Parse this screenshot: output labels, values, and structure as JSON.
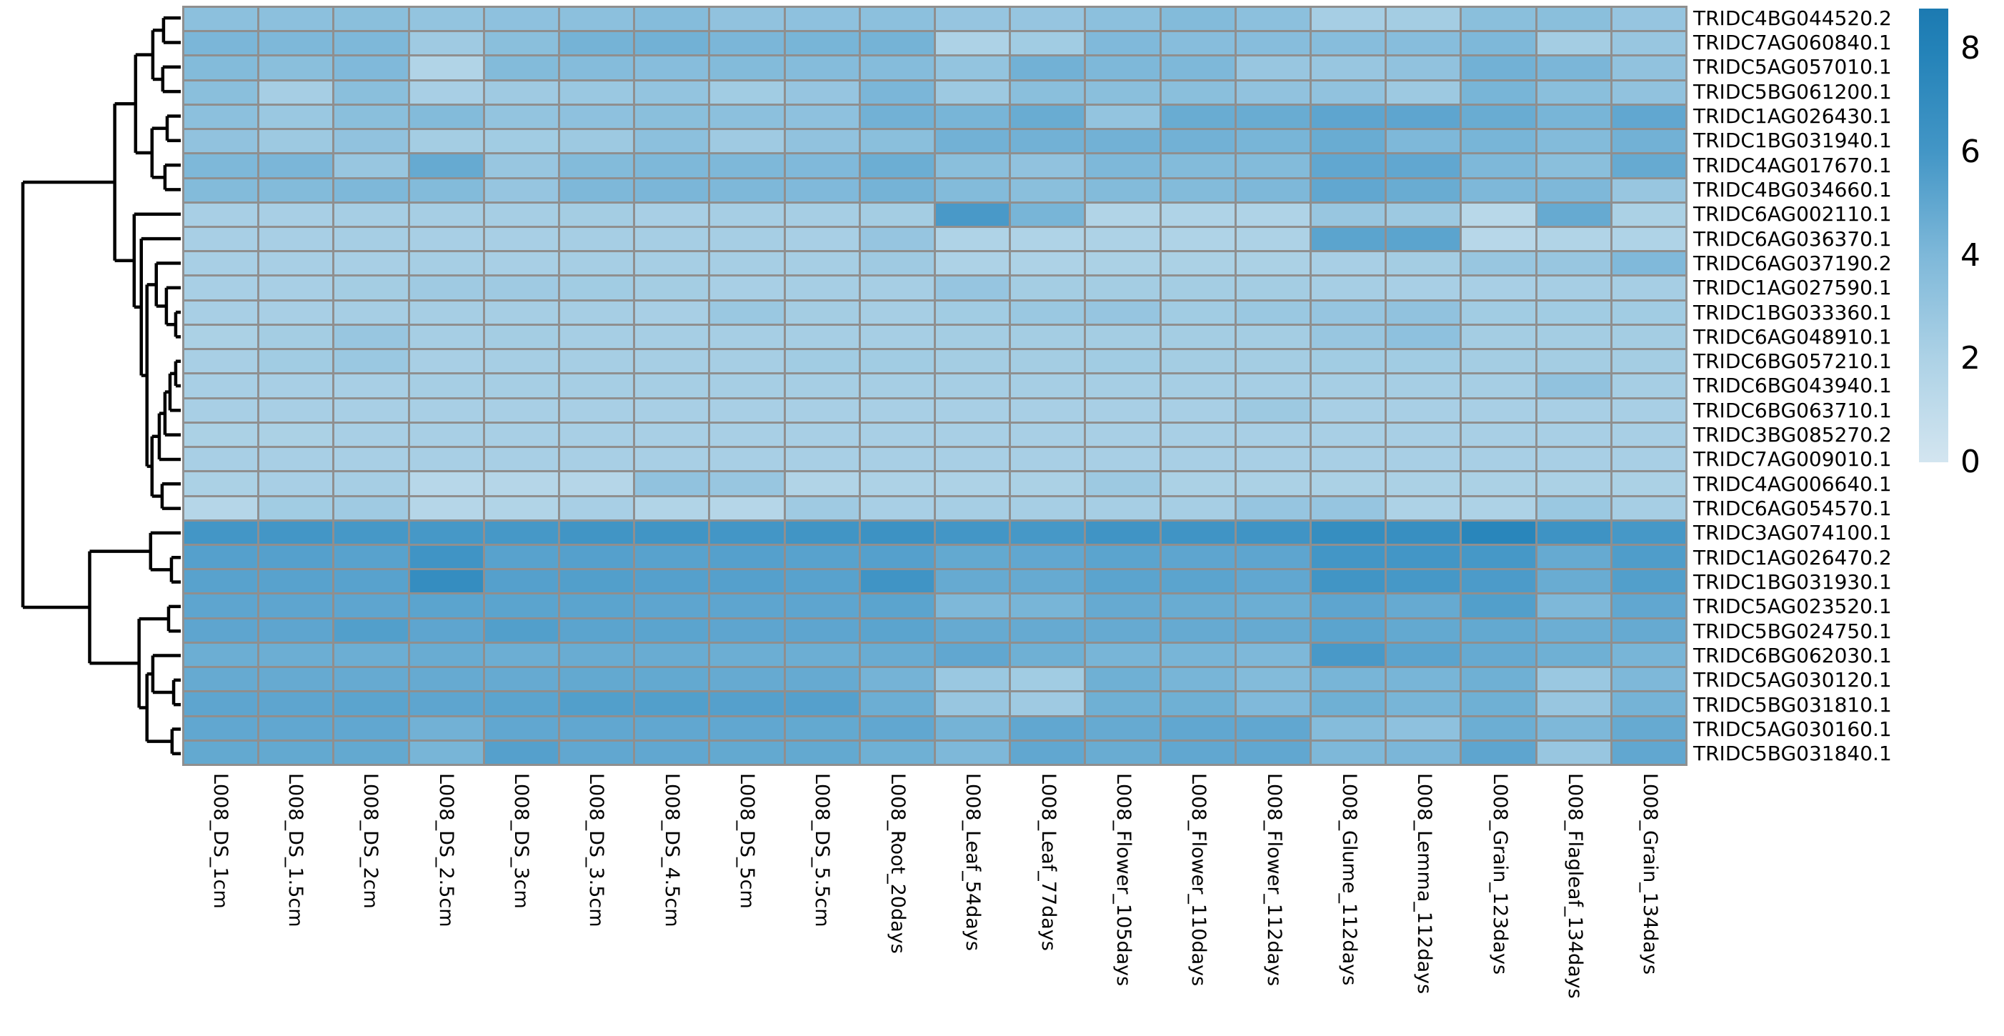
{
  "chart_data": {
    "type": "heatmap",
    "title": "",
    "xlabel": "",
    "ylabel": "",
    "rows": [
      "TRIDC4BG044520.2",
      "TRIDC7AG060840.1",
      "TRIDC5AG057010.1",
      "TRIDC5BG061200.1",
      "TRIDC1AG026430.1",
      "TRIDC1BG031940.1",
      "TRIDC4AG017670.1",
      "TRIDC4BG034660.1",
      "TRIDC6AG002110.1",
      "TRIDC6AG036370.1",
      "TRIDC6AG037190.2",
      "TRIDC1AG027590.1",
      "TRIDC1BG033360.1",
      "TRIDC6AG048910.1",
      "TRIDC6BG057210.1",
      "TRIDC6BG043940.1",
      "TRIDC6BG063710.1",
      "TRIDC3BG085270.2",
      "TRIDC7AG009010.1",
      "TRIDC4AG006640.1",
      "TRIDC6AG054570.1",
      "TRIDC3AG074100.1",
      "TRIDC1AG026470.2",
      "TRIDC1BG031930.1",
      "TRIDC5AG023520.1",
      "TRIDC5BG024750.1",
      "TRIDC6BG062030.1",
      "TRIDC5AG030120.1",
      "TRIDC5BG031810.1",
      "TRIDC5AG030160.1",
      "TRIDC5BG031840.1"
    ],
    "columns": [
      "L008_DS_1cm",
      "L008_DS_1.5cm",
      "L008_DS_2cm",
      "L008_DS_2.5cm",
      "L008_DS_3cm",
      "L008_DS_3.5cm",
      "L008_DS_4.5cm",
      "L008_DS_5cm",
      "L008_DS_5.5cm",
      "L008_Root_20days",
      "L008_Leaf_54days",
      "L008_Leaf_77days",
      "L008_Flower_105days",
      "L008_Flower_110days",
      "L008_Flower_112days",
      "L008_Glume_112days",
      "L008_Lemma_112days",
      "L008_Grain_123days",
      "L008_Flagleaf_134days",
      "L008_Grain_134days"
    ],
    "values": [
      [
        3.4,
        3.4,
        3.5,
        3.1,
        3.3,
        3.4,
        3.7,
        3.2,
        3.3,
        3.4,
        3.0,
        3.0,
        3.4,
        3.8,
        3.4,
        2.3,
        2.4,
        3.5,
        3.5,
        3.0
      ],
      [
        4.1,
        4.0,
        4.0,
        2.6,
        3.5,
        4.3,
        4.4,
        4.1,
        4.2,
        4.3,
        2.0,
        2.5,
        3.9,
        3.6,
        3.6,
        3.6,
        3.6,
        4.0,
        2.4,
        2.9
      ],
      [
        3.8,
        3.5,
        3.9,
        1.8,
        3.8,
        3.7,
        3.6,
        3.8,
        3.7,
        3.7,
        3.1,
        4.4,
        4.0,
        4.0,
        2.9,
        2.9,
        3.2,
        4.4,
        4.1,
        3.2
      ],
      [
        3.5,
        2.3,
        3.5,
        2.2,
        2.6,
        2.8,
        3.1,
        2.5,
        3.0,
        4.1,
        2.7,
        3.5,
        3.5,
        3.5,
        3.2,
        3.2,
        2.7,
        4.2,
        3.5,
        3.2
      ],
      [
        3.4,
        2.8,
        3.5,
        3.8,
        3.1,
        3.3,
        3.5,
        3.4,
        3.3,
        4.4,
        4.2,
        4.7,
        3.1,
        4.7,
        4.7,
        5.1,
        5.1,
        4.7,
        4.2,
        5.0
      ],
      [
        3.2,
        2.7,
        3.2,
        2.4,
        2.5,
        2.7,
        3.4,
        2.6,
        3.2,
        3.5,
        4.4,
        4.4,
        4.4,
        4.4,
        4.2,
        4.7,
        4.0,
        4.2,
        3.8,
        4.4
      ],
      [
        4.0,
        4.1,
        2.9,
        4.8,
        2.9,
        3.8,
        4.0,
        4.0,
        3.9,
        4.6,
        3.5,
        3.2,
        4.0,
        3.8,
        3.8,
        5.0,
        5.0,
        4.0,
        3.5,
        4.8
      ],
      [
        3.8,
        3.8,
        4.0,
        3.8,
        3.0,
        4.0,
        4.1,
        4.0,
        3.9,
        4.3,
        3.8,
        3.5,
        3.8,
        3.8,
        4.0,
        5.0,
        4.7,
        4.0,
        4.0,
        2.9
      ],
      [
        2.2,
        2.2,
        2.3,
        2.3,
        2.3,
        2.4,
        2.2,
        2.3,
        2.3,
        2.4,
        5.8,
        4.2,
        1.8,
        1.9,
        1.9,
        2.9,
        2.7,
        1.4,
        4.8,
        2.1
      ],
      [
        2.2,
        2.2,
        2.3,
        2.2,
        2.2,
        2.3,
        2.3,
        2.3,
        2.2,
        3.0,
        1.9,
        1.9,
        2.0,
        1.9,
        2.0,
        5.2,
        5.2,
        1.5,
        1.8,
        1.9
      ],
      [
        2.2,
        2.2,
        2.2,
        2.3,
        2.2,
        2.3,
        2.3,
        2.3,
        2.3,
        2.6,
        2.0,
        2.0,
        2.1,
        2.1,
        2.1,
        2.2,
        2.4,
        2.9,
        2.9,
        3.9
      ],
      [
        2.2,
        2.2,
        2.4,
        2.6,
        2.6,
        2.5,
        2.4,
        2.2,
        2.3,
        2.3,
        3.0,
        2.4,
        2.4,
        2.4,
        2.4,
        2.3,
        2.2,
        2.2,
        2.3,
        2.3
      ],
      [
        2.2,
        2.2,
        2.3,
        2.3,
        2.3,
        2.3,
        2.2,
        2.8,
        2.4,
        2.3,
        2.5,
        2.8,
        3.0,
        2.5,
        2.8,
        3.0,
        3.2,
        2.5,
        2.5,
        2.5
      ],
      [
        2.1,
        2.4,
        2.9,
        2.3,
        2.4,
        2.3,
        2.3,
        2.3,
        2.3,
        2.3,
        2.4,
        2.4,
        2.4,
        2.4,
        2.4,
        2.9,
        3.3,
        2.4,
        2.4,
        2.4
      ],
      [
        2.2,
        2.5,
        2.8,
        2.2,
        2.3,
        2.3,
        2.3,
        2.3,
        2.5,
        2.5,
        2.4,
        2.4,
        2.5,
        2.4,
        2.4,
        2.5,
        2.5,
        2.4,
        2.4,
        2.4
      ],
      [
        2.2,
        2.2,
        2.2,
        2.3,
        2.3,
        2.3,
        2.3,
        2.3,
        2.3,
        2.3,
        2.3,
        2.3,
        2.3,
        2.3,
        2.3,
        2.3,
        2.3,
        2.3,
        3.2,
        2.3
      ],
      [
        2.2,
        2.2,
        2.2,
        2.2,
        2.2,
        2.2,
        2.2,
        2.2,
        2.2,
        2.2,
        2.2,
        2.2,
        2.2,
        2.2,
        2.7,
        2.2,
        2.2,
        2.2,
        2.2,
        2.2
      ],
      [
        2.1,
        2.1,
        2.2,
        2.2,
        2.2,
        2.2,
        2.2,
        2.2,
        2.2,
        2.2,
        2.2,
        2.2,
        2.2,
        2.2,
        2.2,
        2.2,
        2.2,
        2.2,
        2.2,
        2.2
      ],
      [
        2.2,
        2.2,
        2.2,
        2.2,
        2.2,
        2.2,
        2.2,
        2.2,
        2.2,
        2.2,
        2.2,
        2.2,
        2.2,
        2.2,
        2.2,
        2.2,
        2.2,
        2.2,
        2.2,
        2.2
      ],
      [
        2.1,
        2.2,
        2.3,
        1.5,
        1.6,
        1.6,
        3.2,
        2.9,
        1.8,
        2.0,
        2.0,
        2.1,
        2.7,
        2.1,
        2.1,
        2.1,
        2.1,
        2.1,
        2.1,
        2.1
      ],
      [
        1.6,
        2.5,
        2.6,
        1.6,
        1.8,
        2.2,
        1.8,
        1.6,
        2.6,
        2.2,
        2.3,
        2.3,
        2.3,
        2.3,
        3.0,
        3.0,
        2.0,
        2.0,
        2.8,
        2.3
      ],
      [
        6.0,
        6.0,
        5.9,
        5.9,
        5.9,
        6.1,
        6.1,
        6.0,
        6.1,
        6.4,
        6.0,
        5.9,
        6.2,
        6.2,
        6.2,
        6.8,
        6.7,
        7.6,
        6.3,
        5.9
      ],
      [
        5.4,
        5.4,
        5.3,
        6.2,
        5.3,
        5.4,
        5.3,
        5.4,
        5.3,
        5.4,
        4.9,
        5.0,
        5.2,
        5.1,
        5.1,
        6.0,
        6.0,
        5.9,
        4.8,
        5.6
      ],
      [
        5.3,
        5.3,
        5.3,
        6.9,
        5.4,
        5.5,
        5.4,
        5.4,
        5.3,
        6.2,
        4.8,
        4.8,
        5.2,
        5.2,
        5.0,
        6.1,
        5.9,
        5.7,
        4.7,
        5.5
      ],
      [
        5.1,
        5.1,
        5.1,
        5.2,
        5.2,
        5.2,
        5.1,
        5.1,
        5.1,
        5.2,
        4.0,
        4.2,
        4.8,
        4.7,
        4.6,
        5.1,
        4.8,
        5.5,
        4.0,
        5.0
      ],
      [
        5.1,
        5.1,
        5.5,
        5.1,
        5.5,
        5.2,
        5.2,
        5.1,
        5.1,
        5.2,
        4.8,
        4.8,
        4.8,
        4.8,
        4.8,
        5.2,
        4.9,
        4.9,
        4.6,
        4.8
      ],
      [
        4.6,
        4.6,
        4.6,
        4.7,
        4.6,
        4.7,
        4.7,
        4.6,
        4.6,
        4.7,
        5.0,
        4.5,
        4.2,
        4.2,
        4.0,
        5.8,
        5.2,
        4.8,
        4.5,
        4.2
      ],
      [
        4.8,
        4.8,
        4.8,
        4.8,
        4.8,
        4.9,
        4.9,
        4.8,
        4.8,
        4.3,
        2.8,
        2.5,
        4.5,
        4.2,
        3.8,
        4.2,
        4.2,
        4.5,
        2.8,
        4.0
      ],
      [
        5.1,
        5.1,
        5.2,
        5.1,
        5.2,
        5.5,
        5.5,
        5.4,
        5.4,
        4.6,
        2.9,
        2.6,
        4.5,
        4.5,
        3.9,
        4.5,
        4.2,
        4.5,
        2.9,
        4.3
      ],
      [
        5.0,
        5.0,
        5.0,
        4.4,
        5.0,
        5.0,
        5.0,
        5.0,
        4.9,
        5.0,
        4.3,
        5.0,
        4.8,
        5.0,
        5.0,
        3.7,
        3.3,
        4.6,
        4.0,
        4.8
      ],
      [
        4.9,
        4.9,
        4.9,
        4.2,
        5.4,
        5.0,
        5.0,
        4.9,
        4.9,
        4.5,
        4.0,
        5.0,
        4.7,
        5.0,
        5.0,
        4.0,
        4.1,
        5.1,
        2.9,
        5.0
      ]
    ],
    "grid": {
      "on": true,
      "line_color": "#8f8f8f"
    },
    "color_scale": {
      "position": "right",
      "vmin": 0,
      "vmax": 8.78,
      "ticks": [
        8,
        6,
        4,
        2,
        0
      ],
      "stops": [
        [
          0,
          "#d3e5f0"
        ],
        [
          2,
          "#add2e6"
        ],
        [
          4,
          "#7eb8d9"
        ],
        [
          6,
          "#4396c6"
        ],
        [
          8,
          "#2382b8"
        ],
        [
          8.78,
          "#1c7ab1"
        ]
      ]
    },
    "row_dendrogram": {
      "side": "left",
      "color": "#000000",
      "linewidth": 4.5,
      "tree": {
        "d": 1.0,
        "children": [
          {
            "d": 0.418,
            "children": [
              {
                "d": 0.286,
                "children": [
                  {
                    "d": 0.177,
                    "children": [
                      {
                        "d": 0.109,
                        "children": [
                          0,
                          1
                        ]
                      },
                      {
                        "d": 0.114,
                        "children": [
                          2,
                          3
                        ]
                      }
                    ]
                  },
                  {
                    "d": 0.182,
                    "children": [
                      {
                        "d": 0.086,
                        "children": [
                          4,
                          5
                        ]
                      },
                      {
                        "d": 0.1,
                        "children": [
                          6,
                          7
                        ]
                      }
                    ]
                  }
                ]
              },
              {
                "d": 0.295,
                "children": [
                  8,
                  {
                    "d": 0.25,
                    "children": [
                      9,
                      {
                        "d": 0.214,
                        "children": [
                          {
                            "d": 0.155,
                            "children": [
                              10,
                              {
                                "d": 0.091,
                                "children": [
                                  11,
                                  {
                                    "d": 0.032,
                                    "children": [
                                      12,
                                      13
                                    ]
                                  }
                                ]
                              }
                            ]
                          },
                          {
                            "d": 0.182,
                            "children": [
                              {
                                "d": 0.136,
                                "children": [
                                  {
                                    "d": 0.1,
                                    "children": [
                                      {
                                        "d": 0.068,
                                        "children": [
                                          {
                                            "d": 0.032,
                                            "children": [
                                              14,
                                              15
                                            ]
                                          },
                                          16
                                        ]
                                      },
                                      17
                                    ]
                                  },
                                  18
                                ]
                              },
                              {
                                "d": 0.118,
                                "children": [
                                  19,
                                  20
                                ]
                              }
                            ]
                          }
                        ]
                      }
                    ]
                  }
                ]
              }
            ]
          },
          {
            "d": 0.577,
            "children": [
              {
                "d": 0.191,
                "children": [
                  21,
                  {
                    "d": 0.059,
                    "children": [
                      22,
                      23
                    ]
                  }
                ]
              },
              {
                "d": 0.264,
                "children": [
                  {
                    "d": 0.077,
                    "children": [
                      24,
                      25
                    ]
                  },
                  {
                    "d": 0.214,
                    "children": [
                      {
                        "d": 0.177,
                        "children": [
                          26,
                          {
                            "d": 0.045,
                            "children": [
                              27,
                              28
                            ]
                          }
                        ]
                      },
                      {
                        "d": 0.055,
                        "children": [
                          29,
                          30
                        ]
                      }
                    ]
                  }
                ]
              }
            ]
          }
        ]
      }
    }
  }
}
